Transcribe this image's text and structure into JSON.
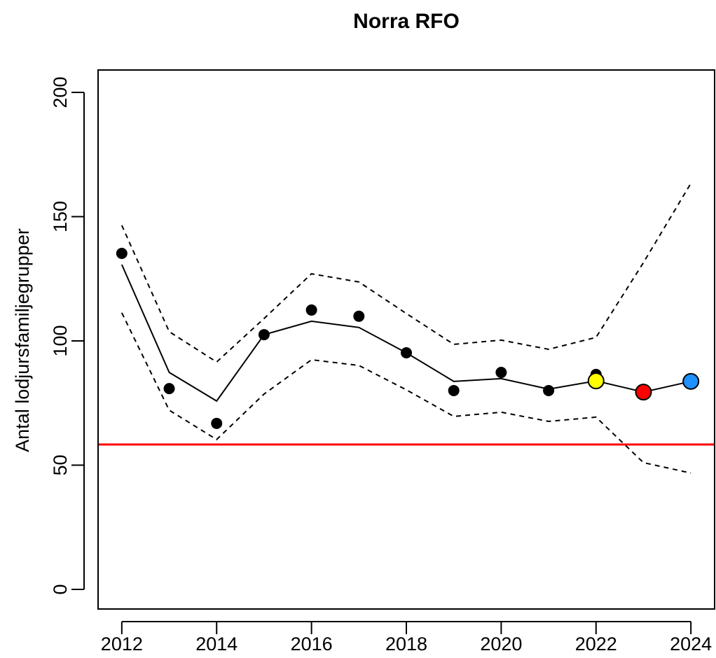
{
  "chart_data": {
    "type": "line",
    "title": "Norra RFO",
    "y_label": "Antal lodjursfamiljegrupper",
    "x": [
      2012,
      2013,
      2014,
      2015,
      2016,
      2017,
      2018,
      2019,
      2020,
      2021,
      2022,
      2023,
      2024
    ],
    "series": [
      {
        "style": "dashed",
        "color": "#000000",
        "values": [
          146.5,
          103.7,
          91.5,
          109,
          127,
          123.7,
          111,
          98.6,
          100.3,
          96.6,
          101.4,
          131.5,
          163.4
        ]
      },
      {
        "style": "dashed",
        "color": "#000000",
        "values": [
          111.3,
          72.1,
          60.3,
          78.6,
          92.4,
          90.1,
          80.3,
          69.6,
          71.3,
          67.6,
          69.3,
          51,
          46.8
        ]
      },
      {
        "style": "line",
        "color": "#000000",
        "values": [
          130.7,
          87.3,
          75.8,
          102.5,
          107.9,
          105.4,
          95.2,
          83.7,
          84.8,
          80.6,
          83.9,
          79.4,
          83.7
        ]
      },
      {
        "style": "points",
        "color": "#000000",
        "values": [
          135.2,
          80.8,
          66.8,
          102.5,
          112.4,
          109.9,
          95.2,
          80,
          87.3,
          80,
          86.5,
          null,
          null
        ]
      },
      {
        "style": "outlined-points",
        "color": "#ffff00",
        "values": [
          null,
          null,
          null,
          null,
          null,
          null,
          null,
          null,
          null,
          null,
          83.9,
          null,
          null
        ]
      },
      {
        "style": "outlined-points",
        "color": "#ff0000",
        "values": [
          null,
          null,
          null,
          null,
          null,
          null,
          null,
          null,
          null,
          null,
          null,
          79.4,
          null
        ]
      },
      {
        "style": "outlined-points",
        "color": "#1e90ff",
        "values": [
          null,
          null,
          null,
          null,
          null,
          null,
          null,
          null,
          null,
          null,
          null,
          null,
          83.7
        ]
      }
    ],
    "hline": {
      "value": 58.3,
      "color": "#ff0000"
    },
    "xlim": [
      2011.5,
      2024.5
    ],
    "ylim": [
      -7.9,
      209
    ],
    "xticks": [
      2012,
      2014,
      2016,
      2018,
      2020,
      2022,
      2024
    ],
    "yticks": [
      0,
      50,
      100,
      150,
      200
    ]
  }
}
